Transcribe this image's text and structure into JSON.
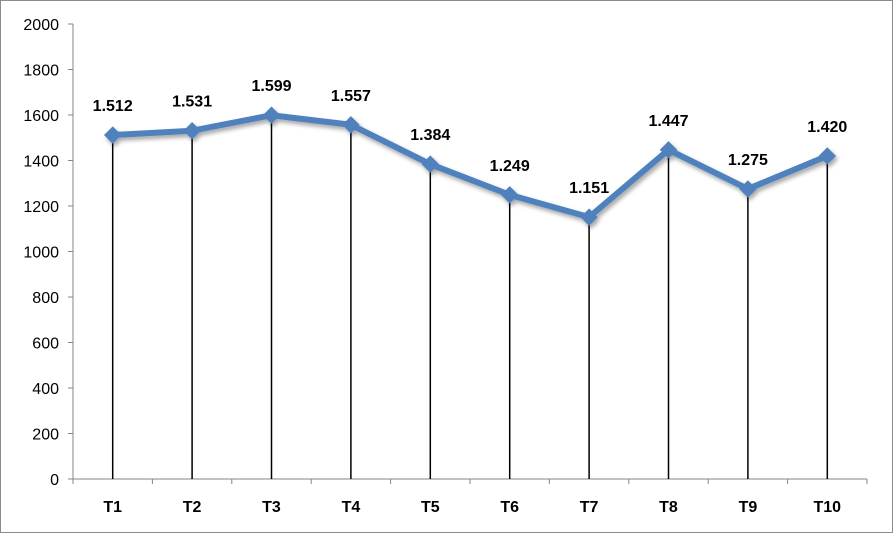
{
  "chart_data": {
    "type": "line",
    "title": "",
    "xlabel": "",
    "ylabel": "",
    "categories": [
      "T1",
      "T2",
      "T3",
      "T4",
      "T5",
      "T6",
      "T7",
      "T8",
      "T9",
      "T10"
    ],
    "series": [
      {
        "values": [
          1512,
          1531,
          1599,
          1557,
          1384,
          1249,
          1151,
          1447,
          1275,
          1420
        ],
        "data_labels": [
          "1.512",
          "1.531",
          "1.599",
          "1.557",
          "1.384",
          "1.249",
          "1.151",
          "1.447",
          "1.275",
          "1.420"
        ],
        "color": "#4f81bd",
        "marker": "diamond"
      }
    ],
    "ylim": [
      0,
      2000
    ],
    "yticks": [
      "0",
      "200",
      "400",
      "600",
      "800",
      "1000",
      "1200",
      "1400",
      "1600",
      "1800",
      "2000"
    ],
    "drop_lines": true,
    "grid": false,
    "legend": "none"
  }
}
